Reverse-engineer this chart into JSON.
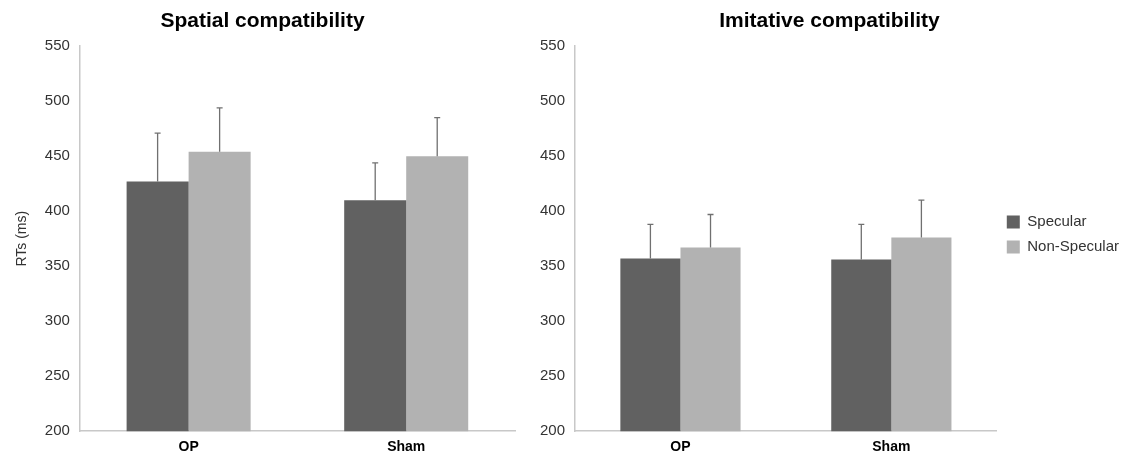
{
  "chart_data": [
    {
      "type": "bar",
      "title": "Spatial compatibility",
      "ylabel": "RTs (ms)",
      "categories": [
        "OP",
        "Sham"
      ],
      "series": [
        {
          "color": "#616161",
          "values": [
            427,
            410
          ],
          "errors": [
            [
              427,
              471
            ],
            [
              410,
              444
            ]
          ]
        },
        {
          "color": "#b2b2b2",
          "values": [
            454,
            450
          ],
          "errors": [
            [
              454,
              494
            ],
            [
              450,
              485
            ]
          ]
        }
      ],
      "ylim": [
        200,
        550
      ],
      "yticks": [
        200,
        250,
        300,
        350,
        400,
        450,
        500,
        550
      ],
      "grid": false,
      "legend": false
    },
    {
      "type": "bar",
      "title": "Imitative compatibility",
      "categories": [
        "OP",
        "Sham"
      ],
      "series": [
        {
          "name": "Specular",
          "color": "#616161",
          "values": [
            357,
            356
          ],
          "errors": [
            [
              357,
              388
            ],
            [
              356,
              388
            ]
          ]
        },
        {
          "name": "Non-Specular",
          "color": "#b2b2b2",
          "values": [
            367,
            376
          ],
          "errors": [
            [
              367,
              397
            ],
            [
              376,
              410
            ]
          ]
        }
      ],
      "ylim": [
        200,
        550
      ],
      "yticks": [
        200,
        250,
        300,
        350,
        400,
        450,
        500,
        550
      ],
      "grid": false,
      "legend": "right"
    }
  ]
}
